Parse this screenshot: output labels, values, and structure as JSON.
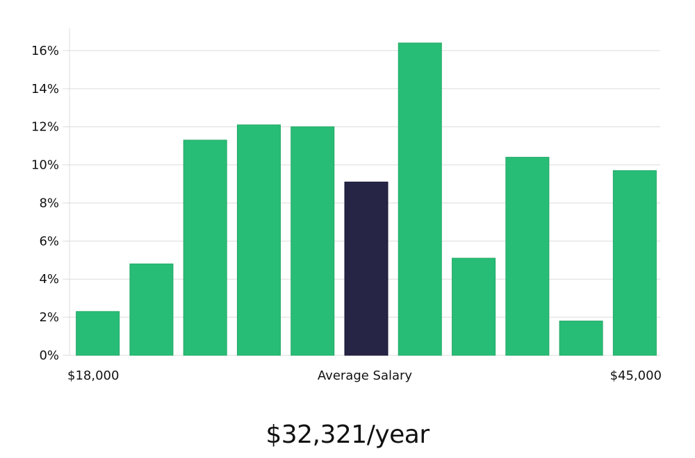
{
  "chart_data": {
    "type": "bar",
    "values": [
      2.3,
      4.8,
      11.3,
      12.1,
      12.0,
      9.1,
      16.4,
      5.1,
      10.4,
      1.8,
      9.7
    ],
    "highlight_index": 5,
    "y_ticks": [
      "0%",
      "2%",
      "4%",
      "6%",
      "8%",
      "10%",
      "12%",
      "14%",
      "16%"
    ],
    "ylim": [
      0,
      17.2
    ],
    "grid": true,
    "x_labels": {
      "left": "$18,000",
      "center": "Average Salary",
      "right": "$45,000"
    },
    "colors": {
      "bar": "#28bd76",
      "bar_stroke": "#22a866",
      "highlight": "#272546"
    }
  },
  "salary_display": "$32,321/year"
}
